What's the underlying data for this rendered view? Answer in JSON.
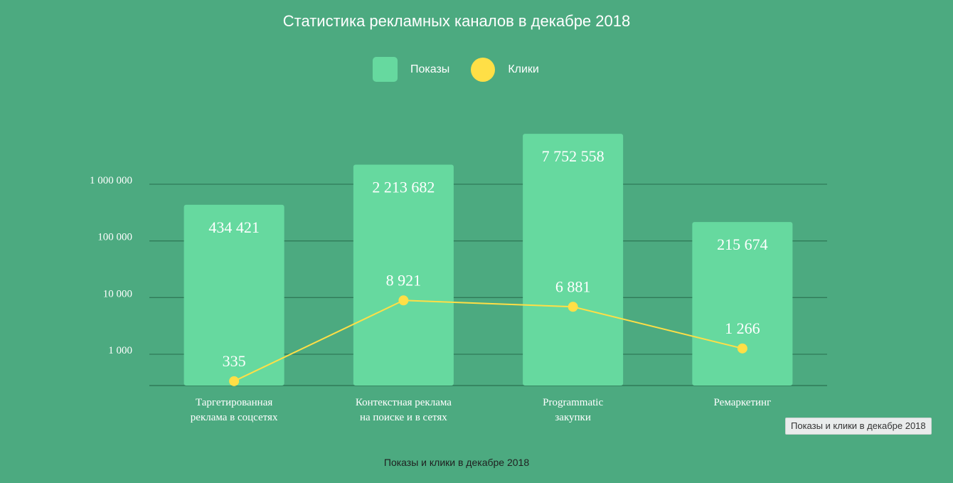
{
  "colors": {
    "background": "#4caa80",
    "bar": "#66d99f",
    "line": "#ffdf46",
    "grid": "#2f7a58",
    "text": "#ffffff"
  },
  "caption": "Показы и клики в декабре 2018",
  "tooltip": "Показы и клики в декабре 2018",
  "chart_data": {
    "type": "bar",
    "title": "Статистика рекламных каналов в декабре 2018",
    "yscale": "log",
    "ylim": [
      250,
      10000000
    ],
    "grid": true,
    "legend_position": "top",
    "legend": [
      "Показы",
      "Клики"
    ],
    "yticks": [
      {
        "value": 1000,
        "label": "1 000"
      },
      {
        "value": 10000,
        "label": "10 000"
      },
      {
        "value": 100000,
        "label": "100 000"
      },
      {
        "value": 1000000,
        "label": "1 000 000"
      }
    ],
    "categories": [
      [
        "Таргетированная",
        "реклама в соцсетях"
      ],
      [
        "Контекстная реклама",
        "на поиске и в сетях"
      ],
      [
        "Programmatic",
        "закупки"
      ],
      [
        "Ремаркетинг"
      ]
    ],
    "series": [
      {
        "name": "Показы",
        "type": "bar",
        "values": [
          434421,
          2213682,
          7752558,
          215674
        ],
        "labels": [
          "434 421",
          "2 213 682",
          "7 752 558",
          "215 674"
        ]
      },
      {
        "name": "Клики",
        "type": "line",
        "values": [
          335,
          8921,
          6881,
          1266
        ],
        "labels": [
          "335",
          "8 921",
          "6 881",
          "1 266"
        ]
      }
    ]
  }
}
